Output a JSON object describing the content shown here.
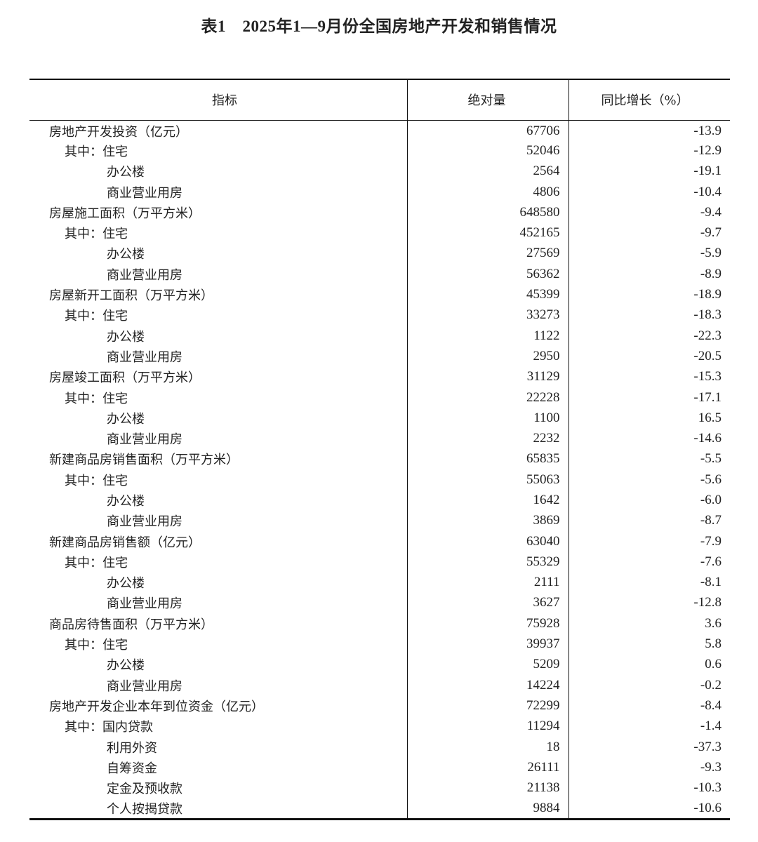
{
  "title": "表1　2025年1—9月份全国房地产开发和销售情况",
  "headers": {
    "indicator": "指标",
    "absolute": "绝对量",
    "yoy": "同比增长（%）"
  },
  "rows": [
    {
      "label": "房地产开发投资（亿元）",
      "level": 0,
      "value": "67706",
      "yoy": "-13.9"
    },
    {
      "label": "其中：住宅",
      "level": 1,
      "value": "52046",
      "yoy": "-12.9"
    },
    {
      "label": "办公楼",
      "level": 2,
      "value": "2564",
      "yoy": "-19.1"
    },
    {
      "label": "商业营业用房",
      "level": 2,
      "value": "4806",
      "yoy": "-10.4"
    },
    {
      "label": "房屋施工面积（万平方米）",
      "level": 0,
      "value": "648580",
      "yoy": "-9.4"
    },
    {
      "label": "其中：住宅",
      "level": 1,
      "value": "452165",
      "yoy": "-9.7"
    },
    {
      "label": "办公楼",
      "level": 2,
      "value": "27569",
      "yoy": "-5.9"
    },
    {
      "label": "商业营业用房",
      "level": 2,
      "value": "56362",
      "yoy": "-8.9"
    },
    {
      "label": "房屋新开工面积（万平方米）",
      "level": 0,
      "value": "45399",
      "yoy": "-18.9"
    },
    {
      "label": "其中：住宅",
      "level": 1,
      "value": "33273",
      "yoy": "-18.3"
    },
    {
      "label": "办公楼",
      "level": 2,
      "value": "1122",
      "yoy": "-22.3"
    },
    {
      "label": "商业营业用房",
      "level": 2,
      "value": "2950",
      "yoy": "-20.5"
    },
    {
      "label": "房屋竣工面积（万平方米）",
      "level": 0,
      "value": "31129",
      "yoy": "-15.3"
    },
    {
      "label": "其中：住宅",
      "level": 1,
      "value": "22228",
      "yoy": "-17.1"
    },
    {
      "label": "办公楼",
      "level": 2,
      "value": "1100",
      "yoy": "16.5"
    },
    {
      "label": "商业营业用房",
      "level": 2,
      "value": "2232",
      "yoy": "-14.6"
    },
    {
      "label": "新建商品房销售面积（万平方米）",
      "level": 0,
      "value": "65835",
      "yoy": "-5.5"
    },
    {
      "label": "其中：住宅",
      "level": 1,
      "value": "55063",
      "yoy": "-5.6"
    },
    {
      "label": "办公楼",
      "level": 2,
      "value": "1642",
      "yoy": "-6.0"
    },
    {
      "label": "商业营业用房",
      "level": 2,
      "value": "3869",
      "yoy": "-8.7"
    },
    {
      "label": "新建商品房销售额（亿元）",
      "level": 0,
      "value": "63040",
      "yoy": "-7.9"
    },
    {
      "label": "其中：住宅",
      "level": 1,
      "value": "55329",
      "yoy": "-7.6"
    },
    {
      "label": "办公楼",
      "level": 2,
      "value": "2111",
      "yoy": "-8.1"
    },
    {
      "label": "商业营业用房",
      "level": 2,
      "value": "3627",
      "yoy": "-12.8"
    },
    {
      "label": "商品房待售面积（万平方米）",
      "level": 0,
      "value": "75928",
      "yoy": "3.6"
    },
    {
      "label": "其中：住宅",
      "level": 1,
      "value": "39937",
      "yoy": "5.8"
    },
    {
      "label": "办公楼",
      "level": 2,
      "value": "5209",
      "yoy": "0.6"
    },
    {
      "label": "商业营业用房",
      "level": 2,
      "value": "14224",
      "yoy": "-0.2"
    },
    {
      "label": "房地产开发企业本年到位资金（亿元）",
      "level": 0,
      "value": "72299",
      "yoy": "-8.4"
    },
    {
      "label": "其中：国内贷款",
      "level": 1,
      "value": "11294",
      "yoy": "-1.4"
    },
    {
      "label": "利用外资",
      "level": 2,
      "value": "18",
      "yoy": "-37.3"
    },
    {
      "label": "自筹资金",
      "level": 2,
      "value": "26111",
      "yoy": "-9.3"
    },
    {
      "label": "定金及预收款",
      "level": 2,
      "value": "21138",
      "yoy": "-10.3"
    },
    {
      "label": "个人按揭贷款",
      "level": 2,
      "value": "9884",
      "yoy": "-10.6"
    }
  ]
}
